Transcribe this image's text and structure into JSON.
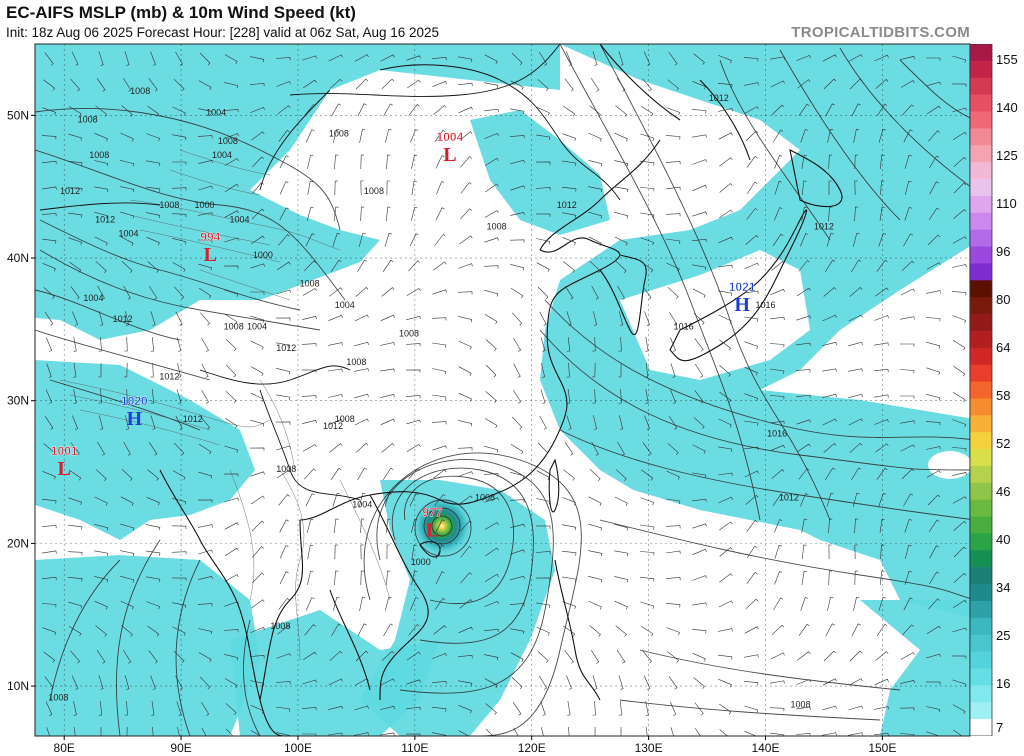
{
  "header": {
    "title": "EC-AIFS MSLP (mb) & 10m Wind Speed (kt)",
    "subtitle": "Init: 18z Aug 06 2025   Forecast Hour: [228]   valid at 06z Sat, Aug 16 2025",
    "brand": "TROPICALTIDBITS.COM"
  },
  "axes": {
    "lat_labels": [
      {
        "lat": 50,
        "text": "50N"
      },
      {
        "lat": 40,
        "text": "40N"
      },
      {
        "lat": 30,
        "text": "30N"
      },
      {
        "lat": 20,
        "text": "20N"
      },
      {
        "lat": 10,
        "text": "10N"
      }
    ],
    "lon_labels": [
      {
        "lon": 80,
        "text": "80E"
      },
      {
        "lon": 90,
        "text": "90E"
      },
      {
        "lon": 100,
        "text": "100E"
      },
      {
        "lon": 110,
        "text": "110E"
      },
      {
        "lon": 120,
        "text": "120E"
      },
      {
        "lon": 130,
        "text": "130E"
      },
      {
        "lon": 140,
        "text": "140E"
      },
      {
        "lon": 150,
        "text": "150E"
      }
    ],
    "lon_range": [
      77.5,
      157.5
    ],
    "lat_range": [
      6.5,
      55
    ]
  },
  "pressure_centers": [
    {
      "type": "L",
      "value": "1004",
      "lat": 47.5,
      "lon": 113,
      "color": "#d6202e"
    },
    {
      "type": "L",
      "value": "994",
      "lat": 40.5,
      "lon": 92.5,
      "color": "#d6202e"
    },
    {
      "type": "H",
      "value": "1021",
      "lat": 37,
      "lon": 138,
      "color": "#1f3fd6"
    },
    {
      "type": "H",
      "value": "1020",
      "lat": 29,
      "lon": 86,
      "color": "#1f3fd6"
    },
    {
      "type": "L",
      "value": "1001",
      "lat": 25.5,
      "lon": 80,
      "color": "#d6202e"
    },
    {
      "type": "L",
      "value": "977",
      "lat": 21.2,
      "lon": 111.5,
      "color": "#d6202e"
    }
  ],
  "isobar_labels": [
    {
      "text": "1008",
      "lat": 51.5,
      "lon": 86.5
    },
    {
      "text": "1008",
      "lat": 49.5,
      "lon": 82
    },
    {
      "text": "1004",
      "lat": 50,
      "lon": 93
    },
    {
      "text": "1008",
      "lat": 48,
      "lon": 94
    },
    {
      "text": "1004",
      "lat": 47,
      "lon": 93.5
    },
    {
      "text": "1008",
      "lat": 47,
      "lon": 83
    },
    {
      "text": "1012",
      "lat": 44.5,
      "lon": 80.5
    },
    {
      "text": "1008",
      "lat": 43.5,
      "lon": 89
    },
    {
      "text": "1000",
      "lat": 43.5,
      "lon": 92
    },
    {
      "text": "1004",
      "lat": 42.5,
      "lon": 95
    },
    {
      "text": "1004",
      "lat": 41.5,
      "lon": 85.5
    },
    {
      "text": "1012",
      "lat": 42.5,
      "lon": 83.5
    },
    {
      "text": "1000",
      "lat": 40,
      "lon": 97
    },
    {
      "text": "1004",
      "lat": 37,
      "lon": 82.5
    },
    {
      "text": "1012",
      "lat": 35.5,
      "lon": 85
    },
    {
      "text": "1008",
      "lat": 35,
      "lon": 94.5
    },
    {
      "text": "1004",
      "lat": 35,
      "lon": 96.5
    },
    {
      "text": "1004",
      "lat": 36.5,
      "lon": 104
    },
    {
      "text": "1008",
      "lat": 38,
      "lon": 101
    },
    {
      "text": "1012",
      "lat": 33.5,
      "lon": 99
    },
    {
      "text": "1008",
      "lat": 34.5,
      "lon": 109.5
    },
    {
      "text": "1012",
      "lat": 31.5,
      "lon": 89
    },
    {
      "text": "1012",
      "lat": 28.5,
      "lon": 91
    },
    {
      "text": "1008",
      "lat": 32.5,
      "lon": 105
    },
    {
      "text": "1012",
      "lat": 28,
      "lon": 103
    },
    {
      "text": "1008",
      "lat": 28.5,
      "lon": 104
    },
    {
      "text": "1008",
      "lat": 25,
      "lon": 99
    },
    {
      "text": "1004",
      "lat": 22.5,
      "lon": 105.5
    },
    {
      "text": "1008",
      "lat": 48.5,
      "lon": 103.5
    },
    {
      "text": "1008",
      "lat": 44.5,
      "lon": 106.5
    },
    {
      "text": "1008",
      "lat": 42,
      "lon": 117
    },
    {
      "text": "1012",
      "lat": 43.5,
      "lon": 123
    },
    {
      "text": "1012",
      "lat": 51,
      "lon": 136
    },
    {
      "text": "1012",
      "lat": 42,
      "lon": 145
    },
    {
      "text": "1016",
      "lat": 36.5,
      "lon": 140
    },
    {
      "text": "1016",
      "lat": 35,
      "lon": 133
    },
    {
      "text": "1016",
      "lat": 27.5,
      "lon": 141
    },
    {
      "text": "1012",
      "lat": 23,
      "lon": 142
    },
    {
      "text": "1008",
      "lat": 23,
      "lon": 116
    },
    {
      "text": "1000",
      "lat": 18.5,
      "lon": 110.5
    },
    {
      "text": "1008",
      "lat": 14,
      "lon": 98.5
    },
    {
      "text": "1008",
      "lat": 9,
      "lon": 79.5
    },
    {
      "text": "1008",
      "lat": 8.5,
      "lon": 143
    }
  ],
  "colorbar": {
    "unit": "kt",
    "labels": [
      "155",
      "140",
      "125",
      "110",
      "96",
      "80",
      "64",
      "58",
      "52",
      "46",
      "40",
      "34",
      "25",
      "16",
      "7"
    ],
    "colors": [
      "#aa1848",
      "#c42348",
      "#d63a52",
      "#e55064",
      "#ee6878",
      "#f28a95",
      "#f5a3b0",
      "#f3b8d6",
      "#eac3ec",
      "#e0a6f0",
      "#cc88ee",
      "#b26ae8",
      "#9a48e0",
      "#7f2dd3",
      "#5a1100",
      "#7a1a0e",
      "#941a1a",
      "#b21f1f",
      "#d02626",
      "#ea3e2a",
      "#f4652c",
      "#f68c2f",
      "#f7b135",
      "#f3d23c",
      "#d8df49",
      "#b4d24b",
      "#8fc548",
      "#6cb942",
      "#4aad40",
      "#2aa445",
      "#158f52",
      "#1b7f76",
      "#1f8a8e",
      "#2ea0a7",
      "#3bb7bf",
      "#4ac6cf",
      "#55d3dc",
      "#66dee6",
      "#80e8ef",
      "#9ff0f5",
      "#ffffff"
    ]
  }
}
